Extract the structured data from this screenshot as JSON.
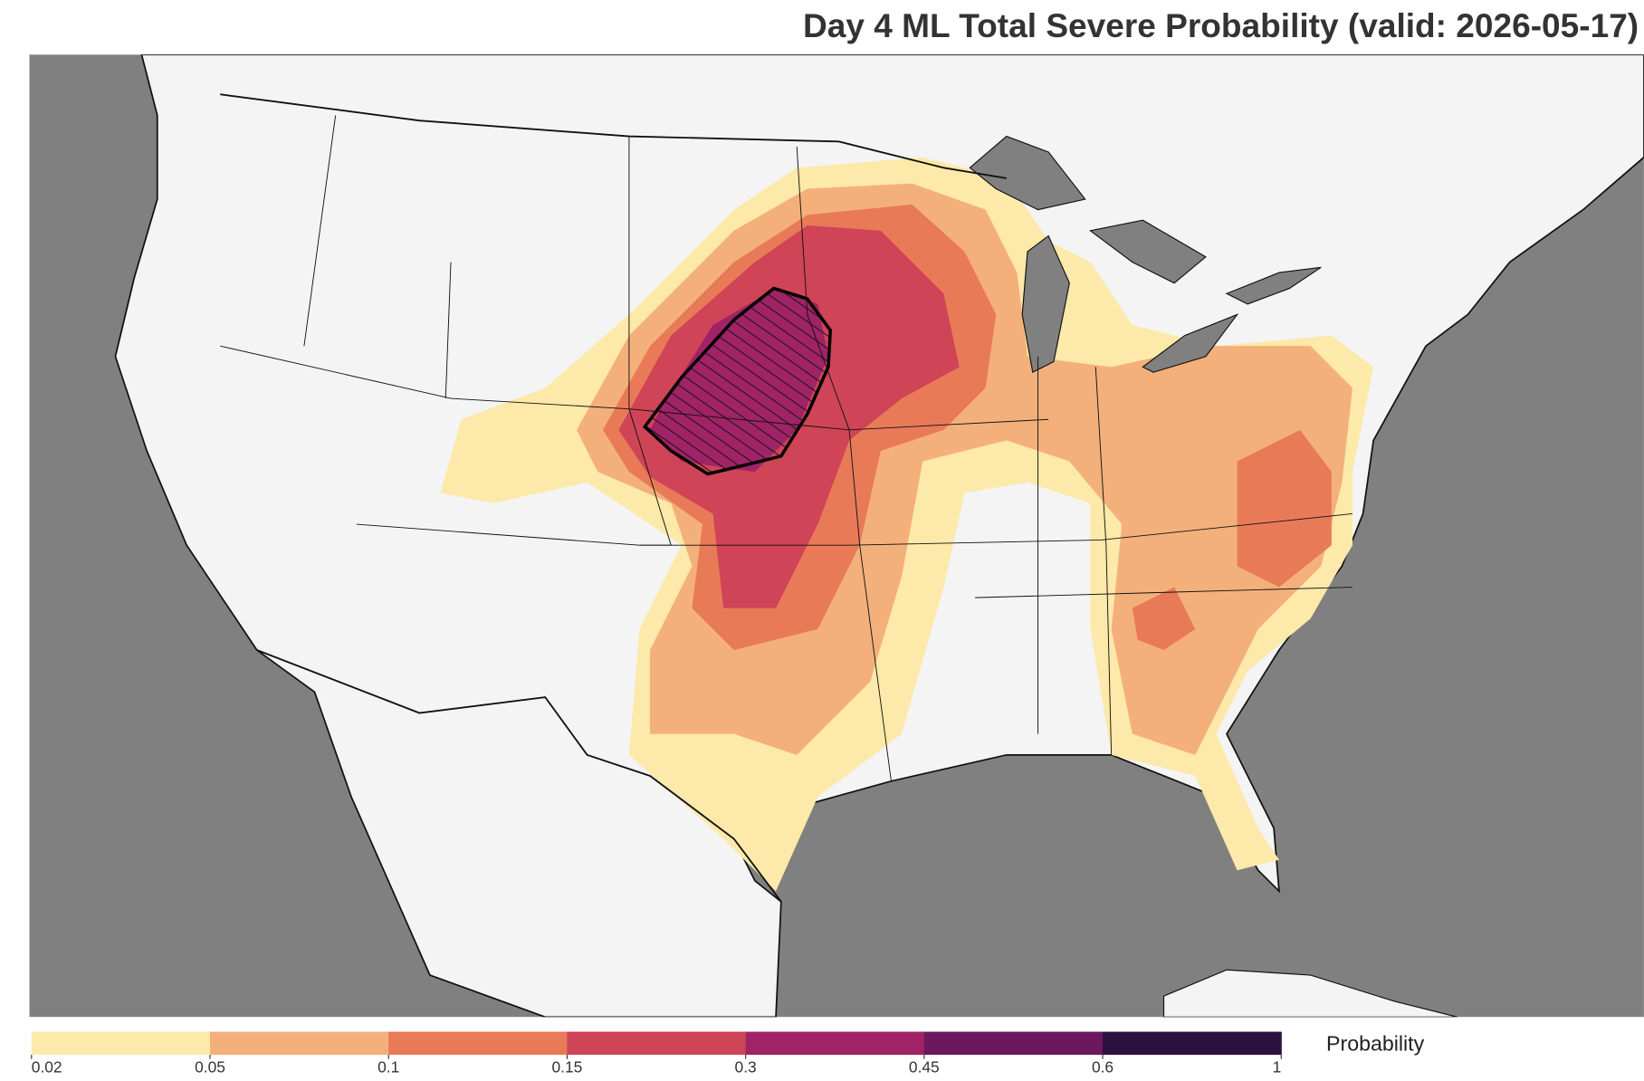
{
  "title": "Day 4 ML Total Severe Probability (valid: 2026-05-17)",
  "colorbar": {
    "label": "Probability",
    "ticks": [
      0.02,
      0.05,
      0.1,
      0.15,
      0.3,
      0.45,
      0.6,
      1
    ],
    "colors": [
      "#fde9a9",
      "#f4b07b",
      "#e97a58",
      "#cf4456",
      "#9f2366",
      "#6b185e",
      "#2d1140"
    ]
  }
}
